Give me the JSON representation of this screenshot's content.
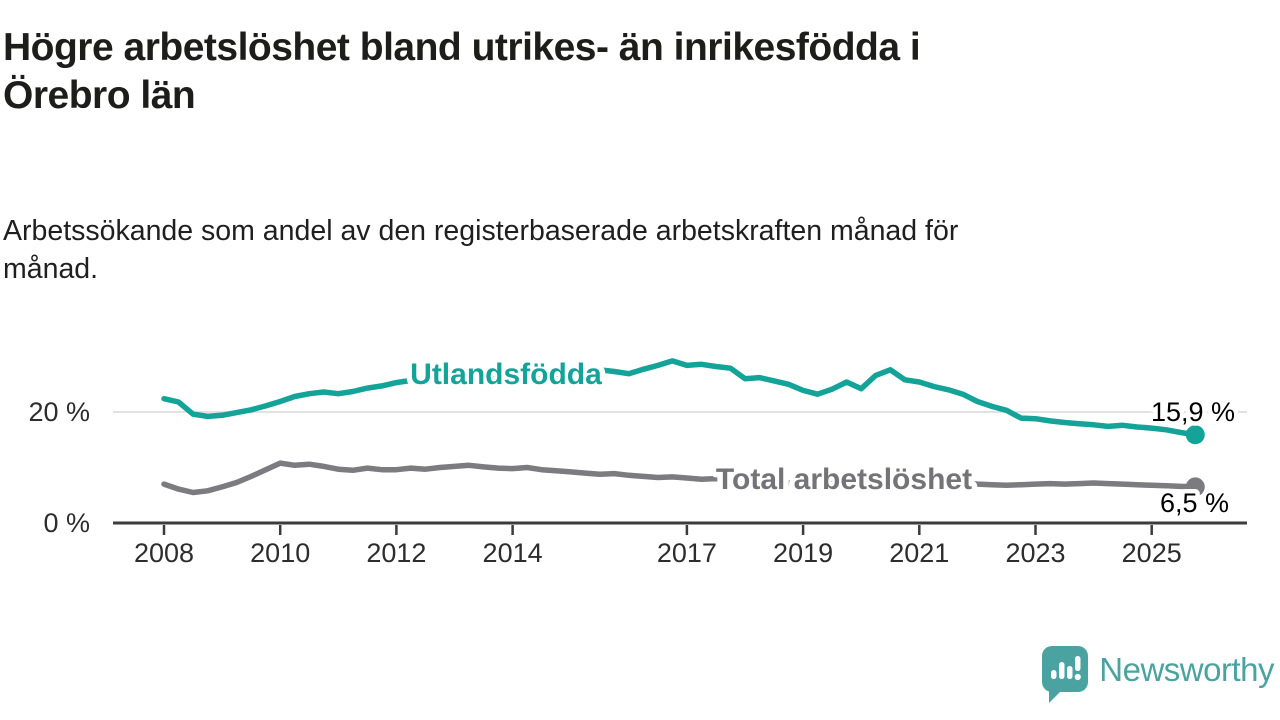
{
  "header": {
    "title_lines": [
      "Högre arbetslöshet bland utrikes- än inrikesfödda i",
      "Örebro län"
    ],
    "subtitle_lines": [
      "Arbetssökande som andel av den registerbaserade arbetskraften månad för",
      "månad."
    ]
  },
  "footer": {
    "brand": "Newsworthy",
    "logo_icon": "newsworthy-speech-bubble-bar-chart-icon",
    "brand_color": "#4aa3a0"
  },
  "chart_data": {
    "type": "line",
    "title": "",
    "xlabel": "",
    "ylabel": "",
    "x_unit": "year (monthly series)",
    "y_unit": "percent",
    "x_start": 2008.0,
    "x_step": 0.25,
    "x_end": 2025.75,
    "ylim": [
      0,
      32
    ],
    "grid": "single horizontal gridline at 20 %",
    "legend_position": "inline labels on lines",
    "x_ticks": [
      2008,
      2010,
      2012,
      2014,
      2017,
      2019,
      2021,
      2023,
      2025
    ],
    "y_ticks": [
      {
        "value": 20,
        "label": "20 %",
        "gridline": true
      },
      {
        "value": 0,
        "label": "0 %",
        "gridline": false
      }
    ],
    "colors": {
      "utlandsfodda": "#13a398",
      "total": "#7b7b80",
      "total_label": "#737378",
      "axis": "#3b3b3b",
      "grid": "#d8d8d8",
      "tick_text": "#2d2d2d",
      "value_text": "#000000"
    },
    "series": [
      {
        "name": "Utlandsfödda",
        "color": "#13a398",
        "label_color": "#13a398",
        "end_value_label": "15,9 %",
        "values": [
          22.4,
          21.8,
          19.6,
          19.2,
          19.4,
          19.9,
          20.4,
          21.1,
          21.9,
          22.8,
          23.3,
          23.6,
          23.3,
          23.7,
          24.3,
          24.7,
          25.3,
          25.7,
          25.3,
          25.8,
          26.0,
          26.3,
          26.1,
          26.4,
          26.5,
          26.8,
          26.6,
          26.9,
          27.1,
          27.4,
          27.6,
          27.3,
          26.9,
          27.7,
          28.4,
          29.2,
          28.4,
          28.6,
          28.2,
          27.9,
          26.0,
          26.2,
          25.6,
          25.0,
          23.9,
          23.2,
          24.1,
          25.4,
          24.2,
          26.6,
          27.6,
          25.8,
          25.4,
          24.6,
          24.0,
          23.2,
          21.9,
          21.0,
          20.3,
          18.9,
          18.8,
          18.4,
          18.1,
          17.9,
          17.7,
          17.4,
          17.6,
          17.3,
          17.1,
          16.8,
          16.3,
          15.9
        ]
      },
      {
        "name": "Total arbetslöshet",
        "color": "#7b7b80",
        "label_color": "#737378",
        "end_value_label": "6,5 %",
        "values": [
          7.0,
          6.1,
          5.5,
          5.8,
          6.5,
          7.3,
          8.4,
          9.6,
          10.8,
          10.4,
          10.6,
          10.2,
          9.7,
          9.5,
          9.9,
          9.6,
          9.6,
          9.9,
          9.7,
          10.0,
          10.2,
          10.4,
          10.1,
          9.9,
          9.8,
          10.0,
          9.6,
          9.4,
          9.2,
          9.0,
          8.8,
          8.9,
          8.6,
          8.4,
          8.2,
          8.3,
          8.1,
          7.9,
          8.0,
          7.8,
          7.7,
          7.5,
          7.4,
          7.2,
          7.0,
          6.9,
          7.1,
          7.3,
          7.6,
          8.9,
          9.3,
          8.8,
          8.4,
          7.9,
          7.6,
          7.2,
          7.0,
          6.9,
          6.8,
          6.9,
          7.0,
          7.1,
          7.0,
          7.1,
          7.2,
          7.1,
          7.0,
          6.9,
          6.8,
          6.7,
          6.6,
          6.5
        ]
      }
    ]
  }
}
